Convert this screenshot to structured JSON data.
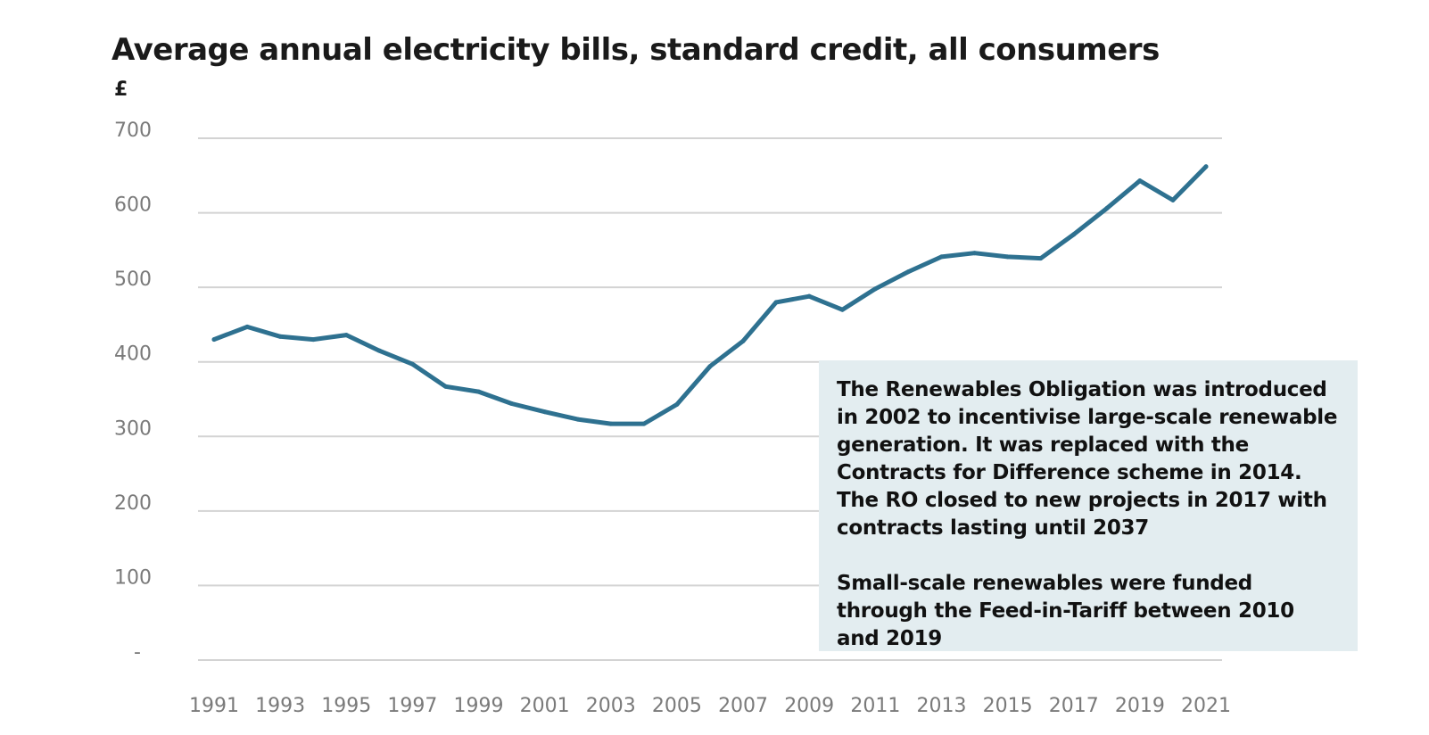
{
  "chart_data": {
    "type": "line",
    "title": "Average annual electricity bills, standard credit, all consumers",
    "ylabel": "£",
    "xlabel": "",
    "ylim": [
      0,
      700
    ],
    "yticks": [
      {
        "value": 0,
        "label": "-"
      },
      {
        "value": 100,
        "label": "100"
      },
      {
        "value": 200,
        "label": "200"
      },
      {
        "value": 300,
        "label": "300"
      },
      {
        "value": 400,
        "label": "400"
      },
      {
        "value": 500,
        "label": "500"
      },
      {
        "value": 600,
        "label": "600"
      },
      {
        "value": 700,
        "label": "700"
      }
    ],
    "xticks": [
      "1991",
      "1993",
      "1995",
      "1997",
      "1999",
      "2001",
      "2003",
      "2005",
      "2007",
      "2009",
      "2011",
      "2013",
      "2015",
      "2017",
      "2019",
      "2021"
    ],
    "grid": true,
    "legend": "none",
    "color": "#2e7190",
    "x": [
      1991,
      1992,
      1993,
      1994,
      1995,
      1996,
      1997,
      1998,
      1999,
      2000,
      2001,
      2002,
      2003,
      2004,
      2005,
      2006,
      2007,
      2008,
      2009,
      2010,
      2011,
      2012,
      2013,
      2014,
      2015,
      2016,
      2017,
      2018,
      2019,
      2020,
      2021
    ],
    "values": [
      430,
      447,
      434,
      430,
      436,
      415,
      397,
      367,
      360,
      344,
      333,
      323,
      317,
      317,
      343,
      394,
      428,
      480,
      488,
      470,
      498,
      521,
      541,
      546,
      541,
      539,
      571,
      606,
      643,
      617,
      662
    ]
  },
  "annotation": {
    "paragraphs": [
      "The Renewables Obligation was introduced in 2002 to incentivise large-scale renewable generation. It was replaced with the Contracts for Difference scheme in 2014. The RO closed to new projects in 2017 with contracts lasting until 2037",
      "Small-scale renewables were funded through the Feed-in-Tariff between 2010 and  2019"
    ]
  }
}
